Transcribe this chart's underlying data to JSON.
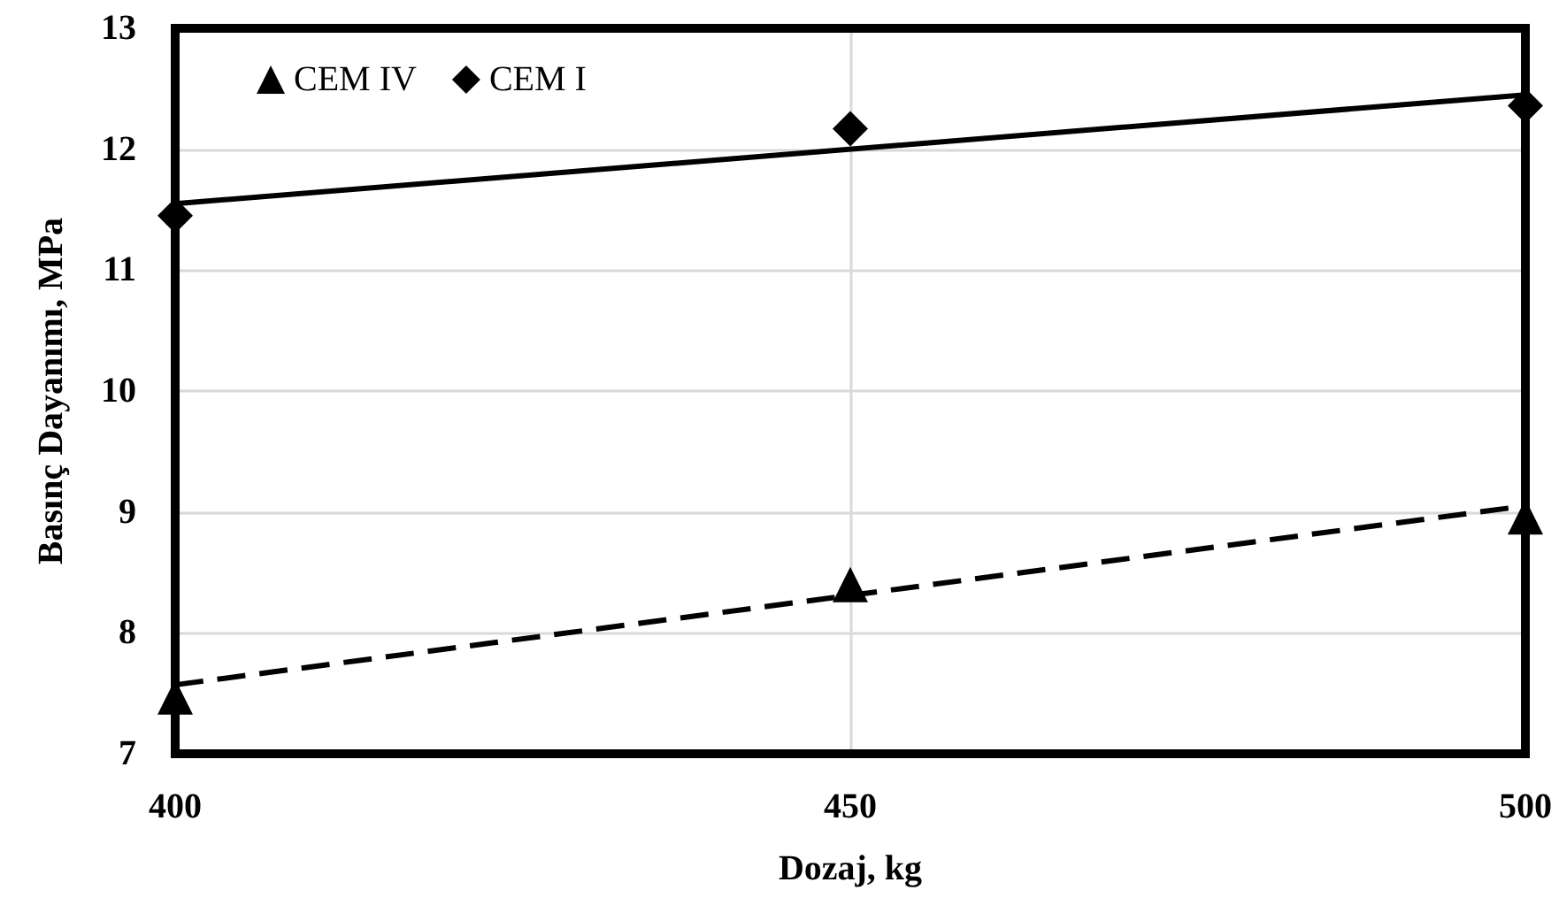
{
  "chart_data": {
    "type": "scatter",
    "xlabel": "Dozaj, kg",
    "ylabel": "Basınç Dayanımı, MPa",
    "xlim": [
      400,
      500
    ],
    "xticks": [
      400,
      450,
      500
    ],
    "ylim": [
      7,
      13
    ],
    "yticks": [
      7,
      8,
      9,
      10,
      11,
      12,
      13
    ],
    "grid": true,
    "legend": "top left",
    "series": [
      {
        "name": "CEM IV",
        "color": "#000000",
        "marker": "triangle",
        "x": [
          400,
          450,
          500
        ],
        "values": [
          7.47,
          8.4,
          8.96
        ]
      },
      {
        "name": "CEM I",
        "color": "#000000",
        "marker": "diamond",
        "x": [
          400,
          450,
          500
        ],
        "values": [
          11.45,
          12.17,
          12.36
        ]
      },
      {
        "type": "line",
        "color": "#000000",
        "line_style": "dashed",
        "marker": "none",
        "x": [
          400,
          500
        ],
        "values": [
          7.57,
          9.05
        ]
      },
      {
        "type": "line",
        "color": "#000000",
        "line_style": "solid",
        "marker": "none",
        "x": [
          400,
          500
        ],
        "values": [
          11.55,
          12.45
        ]
      }
    ]
  }
}
